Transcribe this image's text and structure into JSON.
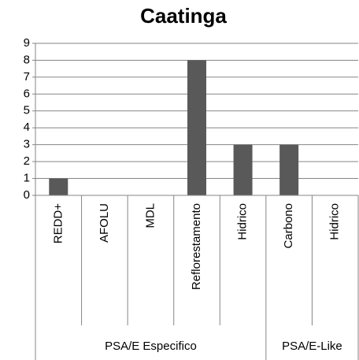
{
  "chart_data": {
    "type": "bar",
    "title": "Caatinga",
    "color": "#595959",
    "groups": [
      {
        "name": "PSA/E Especifico",
        "categories": [
          "REDD+",
          "AFOLU",
          "MDL",
          "Reflorestamento",
          "Hidrico"
        ],
        "values": [
          1,
          0,
          0,
          8,
          3
        ]
      },
      {
        "name": "PSA/E-Like",
        "categories": [
          "Carbono",
          "Hidrico"
        ],
        "values": [
          3,
          0
        ]
      }
    ],
    "ylim": [
      0,
      9
    ],
    "yticks": [
      0,
      1,
      2,
      3,
      4,
      5,
      6,
      7,
      8,
      9
    ],
    "grid": true
  }
}
